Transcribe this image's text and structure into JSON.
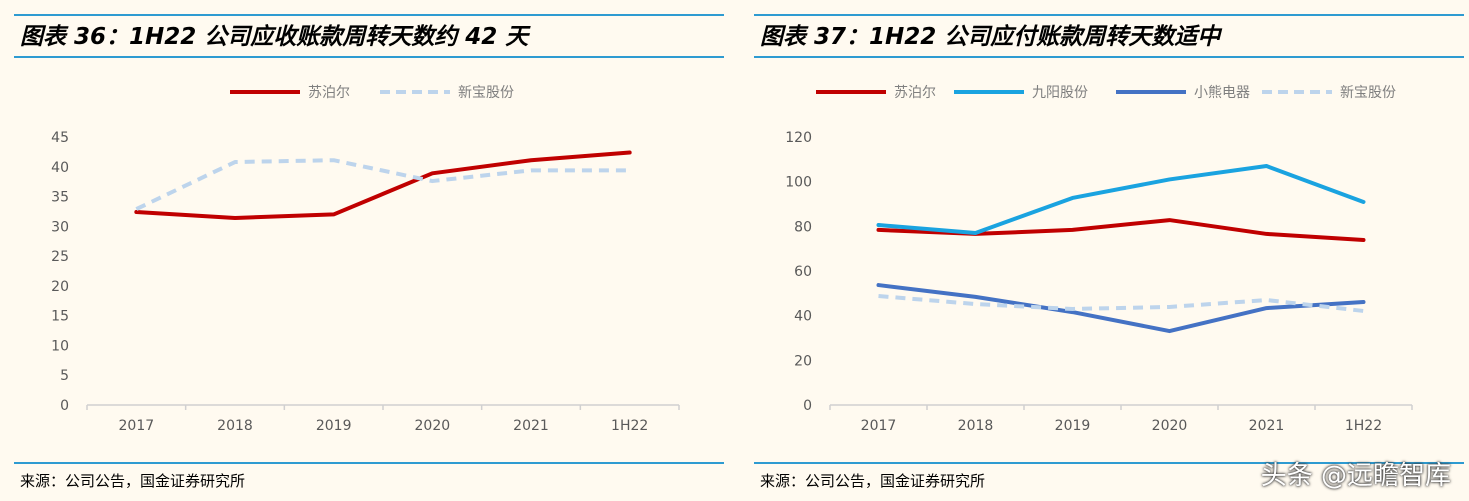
{
  "charts": [
    {
      "title": "图表 36：1H22 公司应收账款周转天数约 42 天",
      "source": "来源：公司公告，国金证券研究所"
    },
    {
      "title": "图表 37：1H22 公司应付账款周转天数适中",
      "source": "来源：公司公告，国金证券研究所"
    }
  ],
  "watermark": "头条 @远瞻智库",
  "chart_data": [
    {
      "type": "line",
      "title": "图表 36：1H22 公司应收账款周转天数约 42 天",
      "categories": [
        "2017",
        "2018",
        "2019",
        "2020",
        "2021",
        "1H22"
      ],
      "ylim": [
        0,
        45
      ],
      "yticks": [
        0,
        5,
        10,
        15,
        20,
        25,
        30,
        35,
        40,
        45
      ],
      "legend": "top",
      "grid": false,
      "series": [
        {
          "name": "苏泊尔",
          "color": "#c00000",
          "dashed": false,
          "values": [
            32.4,
            31.4,
            32.0,
            38.9,
            41.1,
            42.4
          ]
        },
        {
          "name": "新宝股份",
          "color": "#bdd4ec",
          "dashed": true,
          "values": [
            32.9,
            40.8,
            41.1,
            37.6,
            39.4,
            39.4
          ]
        }
      ]
    },
    {
      "type": "line",
      "title": "图表 37：1H22 公司应付账款周转天数适中",
      "categories": [
        "2017",
        "2018",
        "2019",
        "2020",
        "2021",
        "1H22"
      ],
      "ylim": [
        0,
        120
      ],
      "yticks": [
        0,
        20,
        40,
        60,
        80,
        100,
        120
      ],
      "legend": "top",
      "grid": false,
      "series": [
        {
          "name": "苏泊尔",
          "color": "#c00000",
          "dashed": false,
          "values": [
            78.4,
            76.6,
            78.4,
            82.8,
            76.6,
            73.9
          ]
        },
        {
          "name": "九阳股份",
          "color": "#1aa3e0",
          "dashed": false,
          "values": [
            80.6,
            77.0,
            92.7,
            101.0,
            107.0,
            90.9
          ]
        },
        {
          "name": "小熊电器",
          "color": "#4472c4",
          "dashed": false,
          "values": [
            53.7,
            48.4,
            41.6,
            33.1,
            43.4,
            46.1
          ]
        },
        {
          "name": "新宝股份",
          "color": "#bdd4ec",
          "dashed": true,
          "values": [
            48.8,
            45.2,
            43.0,
            43.9,
            47.0,
            42.1
          ]
        }
      ]
    }
  ]
}
